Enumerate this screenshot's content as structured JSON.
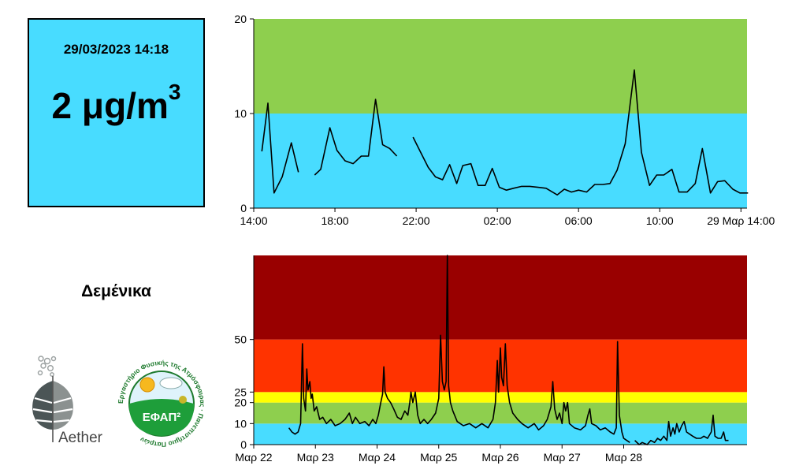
{
  "current": {
    "date": "29/03/2023 14:18",
    "value": "2",
    "unit": "μg/m",
    "unit_sup": "3",
    "color": "#48dcff"
  },
  "station": "Δεμένικα",
  "logos": {
    "aether_text": "Aether",
    "efap_text": "ΕΦΑΠ²",
    "efap_ring": "Εργαστήριο Φυσικής της Ατμόσφαιρας · Πανεπιστήμιο Πατρών"
  },
  "chart_data": [
    {
      "type": "line",
      "id": "last-24h",
      "xlim": [
        0,
        24.3
      ],
      "ylim": [
        0,
        20
      ],
      "yticks": [
        0,
        10,
        20
      ],
      "xticks": [
        {
          "x": 0,
          "label": "14:00"
        },
        {
          "x": 4,
          "label": "18:00"
        },
        {
          "x": 8,
          "label": "22:00"
        },
        {
          "x": 12,
          "label": "02:00"
        },
        {
          "x": 16,
          "label": "06:00"
        },
        {
          "x": 20,
          "label": "10:00"
        },
        {
          "x": 24,
          "label": "29 Μαρ 14:00"
        }
      ],
      "bands": [
        {
          "from": 0,
          "to": 10,
          "color": "#48dcff"
        },
        {
          "from": 10,
          "to": 20,
          "color": "#8ecf4e"
        }
      ],
      "segments": [
        [
          [
            0.4,
            6.0
          ],
          [
            0.7,
            11.1
          ],
          [
            1.0,
            1.6
          ],
          [
            1.4,
            3.3
          ],
          [
            1.85,
            6.9
          ],
          [
            2.2,
            3.8
          ]
        ],
        [
          [
            3.0,
            3.5
          ],
          [
            3.3,
            4.1
          ],
          [
            3.75,
            8.5
          ],
          [
            4.1,
            6.1
          ],
          [
            4.5,
            5.0
          ],
          [
            4.9,
            4.7
          ],
          [
            5.3,
            5.5
          ],
          [
            5.65,
            5.5
          ],
          [
            6.0,
            11.5
          ],
          [
            6.35,
            6.7
          ],
          [
            6.7,
            6.3
          ],
          [
            7.05,
            5.5
          ]
        ],
        [
          [
            7.85,
            7.5
          ],
          [
            8.2,
            6.0
          ],
          [
            8.6,
            4.3
          ],
          [
            8.95,
            3.3
          ],
          [
            9.3,
            3.0
          ],
          [
            9.65,
            4.6
          ],
          [
            10.0,
            2.6
          ],
          [
            10.3,
            4.5
          ],
          [
            10.7,
            4.7
          ],
          [
            11.05,
            2.4
          ],
          [
            11.4,
            2.4
          ],
          [
            11.75,
            4.2
          ],
          [
            12.1,
            2.2
          ],
          [
            12.45,
            1.9
          ],
          [
            12.8,
            2.1
          ],
          [
            13.2,
            2.3
          ],
          [
            13.6,
            2.3
          ],
          [
            14.0,
            2.2
          ],
          [
            14.4,
            2.1
          ],
          [
            14.95,
            1.4
          ],
          [
            15.3,
            2.0
          ],
          [
            15.65,
            1.7
          ],
          [
            16.0,
            1.9
          ],
          [
            16.4,
            1.7
          ],
          [
            16.8,
            2.5
          ],
          [
            17.2,
            2.5
          ],
          [
            17.55,
            2.6
          ],
          [
            17.9,
            4.0
          ],
          [
            18.3,
            6.8
          ],
          [
            18.75,
            14.6
          ],
          [
            19.1,
            5.9
          ],
          [
            19.5,
            2.4
          ],
          [
            19.85,
            3.5
          ],
          [
            20.2,
            3.5
          ],
          [
            20.6,
            4.1
          ],
          [
            20.95,
            1.7
          ],
          [
            21.35,
            1.7
          ],
          [
            21.75,
            2.6
          ],
          [
            22.1,
            6.3
          ],
          [
            22.5,
            1.6
          ],
          [
            22.85,
            2.8
          ],
          [
            23.2,
            2.9
          ],
          [
            23.6,
            2.0
          ],
          [
            23.95,
            1.6
          ],
          [
            24.35,
            1.6
          ]
        ]
      ]
    },
    {
      "type": "line",
      "id": "last-week",
      "xlim": [
        0,
        8
      ],
      "ylim": [
        0,
        90
      ],
      "yticks": [
        0,
        10,
        20,
        25,
        50
      ],
      "xticks": [
        {
          "x": 0,
          "label": "Μαρ 22"
        },
        {
          "x": 1,
          "label": "Μαρ 23"
        },
        {
          "x": 2,
          "label": "Μαρ 24"
        },
        {
          "x": 3,
          "label": "Μαρ 25"
        },
        {
          "x": 4,
          "label": "Μαρ 26"
        },
        {
          "x": 5,
          "label": "Μαρ 27"
        },
        {
          "x": 6,
          "label": "Μαρ 28"
        }
      ],
      "bands": [
        {
          "from": 0,
          "to": 10,
          "color": "#48dcff"
        },
        {
          "from": 10,
          "to": 20,
          "color": "#8ecf4e"
        },
        {
          "from": 20,
          "to": 25,
          "color": "#ffff00"
        },
        {
          "from": 25,
          "to": 50,
          "color": "#ff3300"
        },
        {
          "from": 50,
          "to": 90,
          "color": "#990000"
        }
      ],
      "segments": [
        [
          [
            0.57,
            8
          ],
          [
            0.62,
            6
          ],
          [
            0.67,
            5
          ],
          [
            0.72,
            6
          ],
          [
            0.76,
            10
          ],
          [
            0.79,
            48
          ],
          [
            0.81,
            22
          ],
          [
            0.84,
            16
          ],
          [
            0.86,
            36
          ],
          [
            0.88,
            26
          ],
          [
            0.91,
            30
          ],
          [
            0.93,
            22
          ],
          [
            0.95,
            24
          ],
          [
            0.98,
            16
          ],
          [
            1.02,
            18
          ],
          [
            1.07,
            12
          ],
          [
            1.12,
            13
          ],
          [
            1.18,
            10
          ],
          [
            1.25,
            12
          ],
          [
            1.32,
            9
          ],
          [
            1.4,
            10
          ],
          [
            1.48,
            12
          ],
          [
            1.55,
            15
          ],
          [
            1.6,
            10
          ],
          [
            1.65,
            13
          ],
          [
            1.72,
            10
          ],
          [
            1.8,
            11
          ],
          [
            1.87,
            9
          ],
          [
            1.93,
            12
          ],
          [
            1.98,
            10
          ],
          [
            2.02,
            14
          ],
          [
            2.06,
            20
          ],
          [
            2.09,
            24
          ],
          [
            2.11,
            37
          ],
          [
            2.13,
            25
          ],
          [
            2.17,
            22
          ],
          [
            2.22,
            20
          ],
          [
            2.27,
            17
          ],
          [
            2.33,
            13
          ],
          [
            2.39,
            12
          ],
          [
            2.45,
            16
          ],
          [
            2.5,
            14
          ],
          [
            2.53,
            20
          ],
          [
            2.55,
            25
          ],
          [
            2.58,
            20
          ],
          [
            2.62,
            25
          ],
          [
            2.66,
            14
          ],
          [
            2.7,
            10
          ],
          [
            2.76,
            12
          ],
          [
            2.82,
            10
          ],
          [
            2.88,
            12
          ],
          [
            2.95,
            15
          ],
          [
            3.0,
            22
          ],
          [
            3.03,
            52
          ],
          [
            3.06,
            30
          ],
          [
            3.09,
            26
          ],
          [
            3.12,
            30
          ],
          [
            3.14,
            90
          ],
          [
            3.16,
            28
          ],
          [
            3.19,
            20
          ],
          [
            3.23,
            16
          ],
          [
            3.3,
            11
          ],
          [
            3.4,
            9
          ],
          [
            3.5,
            10
          ],
          [
            3.6,
            8
          ],
          [
            3.7,
            10
          ],
          [
            3.8,
            8
          ],
          [
            3.88,
            12
          ],
          [
            3.92,
            20
          ],
          [
            3.95,
            40
          ],
          [
            3.97,
            25
          ],
          [
            4.0,
            46
          ],
          [
            4.02,
            32
          ],
          [
            4.05,
            28
          ],
          [
            4.08,
            48
          ],
          [
            4.11,
            28
          ],
          [
            4.15,
            20
          ],
          [
            4.2,
            15
          ],
          [
            4.28,
            12
          ],
          [
            4.35,
            10
          ],
          [
            4.45,
            8
          ],
          [
            4.55,
            10
          ],
          [
            4.62,
            7
          ],
          [
            4.7,
            9
          ],
          [
            4.76,
            12
          ],
          [
            4.82,
            18
          ],
          [
            4.85,
            30
          ],
          [
            4.88,
            17
          ],
          [
            4.92,
            12
          ],
          [
            4.96,
            15
          ],
          [
            5.0,
            10
          ],
          [
            5.03,
            20
          ],
          [
            5.06,
            16
          ],
          [
            5.09,
            20
          ],
          [
            5.12,
            10
          ],
          [
            5.2,
            8
          ],
          [
            5.3,
            7
          ],
          [
            5.38,
            9
          ],
          [
            5.42,
            14
          ],
          [
            5.45,
            17
          ],
          [
            5.48,
            10
          ],
          [
            5.55,
            9
          ],
          [
            5.62,
            7
          ],
          [
            5.7,
            8
          ],
          [
            5.78,
            6
          ],
          [
            5.84,
            5
          ],
          [
            5.88,
            8
          ],
          [
            5.9,
            49
          ],
          [
            5.93,
            14
          ],
          [
            5.97,
            6
          ],
          [
            6.0,
            3
          ],
          [
            6.05,
            2
          ],
          [
            6.1,
            1
          ]
        ],
        [
          [
            6.18,
            2
          ],
          [
            6.25,
            0
          ],
          [
            6.3,
            1
          ],
          [
            6.38,
            0
          ],
          [
            6.44,
            2
          ],
          [
            6.5,
            1
          ],
          [
            6.55,
            3
          ],
          [
            6.6,
            2
          ],
          [
            6.65,
            4
          ],
          [
            6.7,
            2
          ],
          [
            6.73,
            11
          ],
          [
            6.76,
            4
          ],
          [
            6.8,
            8
          ],
          [
            6.83,
            5
          ],
          [
            6.86,
            10
          ],
          [
            6.9,
            6
          ],
          [
            6.94,
            9
          ],
          [
            6.98,
            11
          ],
          [
            7.02,
            6
          ],
          [
            7.07,
            5
          ],
          [
            7.12,
            4
          ],
          [
            7.18,
            3
          ],
          [
            7.25,
            3
          ],
          [
            7.3,
            4
          ],
          [
            7.36,
            3
          ],
          [
            7.42,
            6
          ],
          [
            7.45,
            14
          ],
          [
            7.48,
            4
          ],
          [
            7.53,
            3
          ],
          [
            7.58,
            3
          ],
          [
            7.62,
            6
          ],
          [
            7.65,
            2
          ],
          [
            7.7,
            2
          ]
        ]
      ]
    }
  ]
}
